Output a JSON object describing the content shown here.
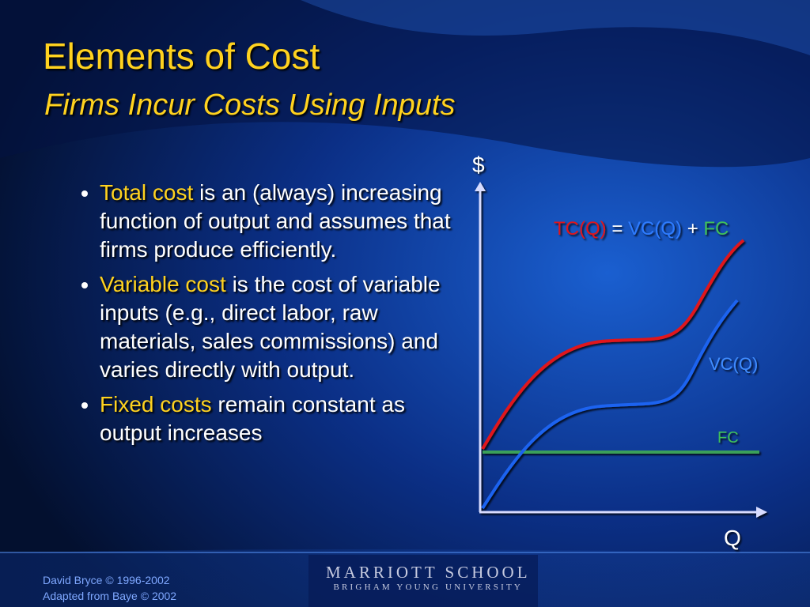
{
  "title": "Elements of Cost",
  "subtitle": "Firms Incur Costs Using Inputs",
  "bullets": [
    {
      "highlight": "Total cost",
      "text": "is an (always) increasing function of output and assumes that firms produce efficiently."
    },
    {
      "highlight": "Variable cost",
      "text": "is the cost of variable inputs (e.g., direct labor, raw materials, sales commissions) and varies directly with output."
    },
    {
      "highlight": "Fixed costs",
      "text": "remain constant as output increases"
    }
  ],
  "diagram": {
    "y_axis": "$",
    "x_axis": "Q",
    "equation": {
      "tc": "TC(Q)",
      "equals": "=",
      "vc": "VC(Q)",
      "plus": "+",
      "fc": "FC"
    },
    "vc_label": "VC(Q)",
    "fc_label": "FC"
  },
  "footer": {
    "credits": [
      "David Bryce © 1996-2002",
      "Adapted from Baye © 2002"
    ],
    "logo": [
      "MARRIOTT SCHOOL",
      "BRIGHAM YOUNG UNIVERSITY"
    ]
  }
}
